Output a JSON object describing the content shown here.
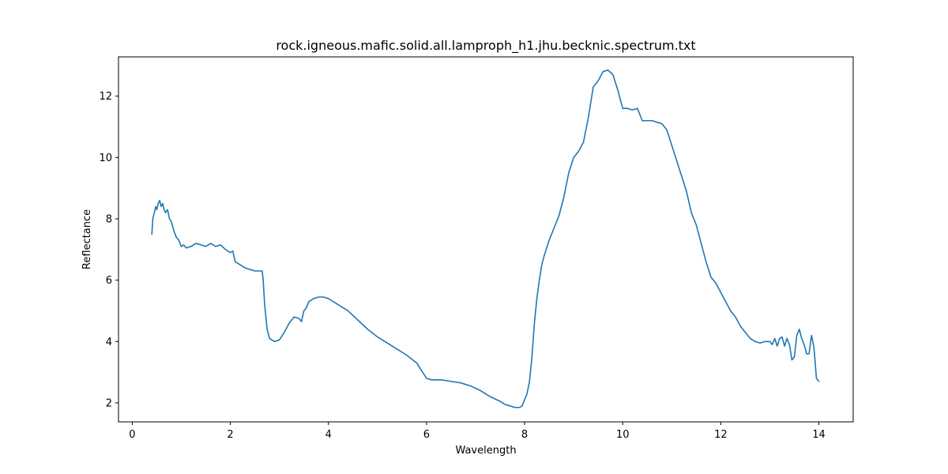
{
  "chart_data": {
    "type": "line",
    "title": "rock.igneous.mafic.solid.all.lamproph_h1.jhu.becknic.spectrum.txt",
    "xlabel": "Wavelength",
    "ylabel": "Reflectance",
    "xlim": [
      -0.28,
      14.7
    ],
    "ylim": [
      1.38,
      13.28
    ],
    "x_ticks": [
      0,
      2,
      4,
      6,
      8,
      10,
      12,
      14
    ],
    "y_ticks": [
      2,
      4,
      6,
      8,
      10,
      12
    ],
    "grid": false,
    "color": "#1f77b4",
    "series": [
      {
        "x": [
          0.4,
          0.42,
          0.45,
          0.48,
          0.5,
          0.53,
          0.56,
          0.59,
          0.62,
          0.65,
          0.68,
          0.72,
          0.76,
          0.8,
          0.85,
          0.9,
          0.95,
          1.0,
          1.05,
          1.1,
          1.2,
          1.3,
          1.4,
          1.5,
          1.6,
          1.7,
          1.8,
          1.9,
          2.0,
          2.05,
          2.1,
          2.2,
          2.3,
          2.4,
          2.5,
          2.55,
          2.6,
          2.65,
          2.67,
          2.7,
          2.75,
          2.8,
          2.9,
          3.0,
          3.1,
          3.2,
          3.3,
          3.4,
          3.45,
          3.5,
          3.55,
          3.6,
          3.7,
          3.8,
          3.9,
          4.0,
          4.2,
          4.4,
          4.6,
          4.8,
          5.0,
          5.2,
          5.4,
          5.6,
          5.8,
          5.9,
          6.0,
          6.1,
          6.3,
          6.5,
          6.7,
          6.9,
          7.1,
          7.3,
          7.5,
          7.6,
          7.7,
          7.8,
          7.85,
          7.9,
          7.95,
          8.0,
          8.05,
          8.1,
          8.15,
          8.2,
          8.25,
          8.3,
          8.35,
          8.4,
          8.5,
          8.6,
          8.7,
          8.8,
          8.9,
          9.0,
          9.1,
          9.2,
          9.3,
          9.4,
          9.5,
          9.6,
          9.7,
          9.8,
          9.9,
          10.0,
          10.1,
          10.2,
          10.3,
          10.4,
          10.5,
          10.6,
          10.7,
          10.8,
          10.9,
          11.0,
          11.1,
          11.2,
          11.3,
          11.4,
          11.5,
          11.6,
          11.7,
          11.8,
          11.9,
          12.0,
          12.1,
          12.2,
          12.3,
          12.4,
          12.5,
          12.6,
          12.7,
          12.8,
          12.9,
          13.0,
          13.05,
          13.1,
          13.15,
          13.2,
          13.25,
          13.3,
          13.35,
          13.4,
          13.45,
          13.5,
          13.55,
          13.6,
          13.65,
          13.7,
          13.75,
          13.8,
          13.85,
          13.9,
          13.95,
          14.0
        ],
        "y": [
          7.5,
          8.0,
          8.2,
          8.4,
          8.3,
          8.5,
          8.6,
          8.4,
          8.5,
          8.3,
          8.2,
          8.3,
          8.0,
          7.9,
          7.6,
          7.4,
          7.3,
          7.1,
          7.15,
          7.05,
          7.1,
          7.2,
          7.15,
          7.1,
          7.2,
          7.1,
          7.15,
          7.0,
          6.9,
          6.95,
          6.6,
          6.5,
          6.4,
          6.35,
          6.3,
          6.3,
          6.3,
          6.3,
          6.0,
          5.2,
          4.4,
          4.1,
          4.0,
          4.05,
          4.3,
          4.6,
          4.8,
          4.75,
          4.65,
          5.0,
          5.1,
          5.3,
          5.4,
          5.45,
          5.45,
          5.4,
          5.2,
          5.0,
          4.7,
          4.4,
          4.15,
          3.95,
          3.75,
          3.55,
          3.3,
          3.05,
          2.8,
          2.75,
          2.75,
          2.7,
          2.65,
          2.55,
          2.4,
          2.2,
          2.05,
          1.95,
          1.9,
          1.85,
          1.85,
          1.85,
          1.9,
          2.1,
          2.3,
          2.7,
          3.5,
          4.6,
          5.4,
          6.0,
          6.5,
          6.8,
          7.3,
          7.7,
          8.1,
          8.7,
          9.5,
          10.0,
          10.2,
          10.5,
          11.3,
          12.3,
          12.5,
          12.8,
          12.85,
          12.7,
          12.2,
          11.6,
          11.6,
          11.55,
          11.6,
          11.2,
          11.2,
          11.2,
          11.15,
          11.1,
          10.9,
          10.4,
          9.9,
          9.4,
          8.9,
          8.2,
          7.8,
          7.2,
          6.6,
          6.1,
          5.9,
          5.6,
          5.3,
          5.0,
          4.8,
          4.5,
          4.3,
          4.1,
          4.0,
          3.95,
          4.0,
          4.0,
          3.9,
          4.1,
          3.85,
          4.1,
          4.15,
          3.85,
          4.1,
          3.9,
          3.4,
          3.5,
          4.2,
          4.4,
          4.1,
          3.9,
          3.6,
          3.6,
          4.2,
          3.8,
          2.8,
          2.7
        ]
      }
    ]
  }
}
